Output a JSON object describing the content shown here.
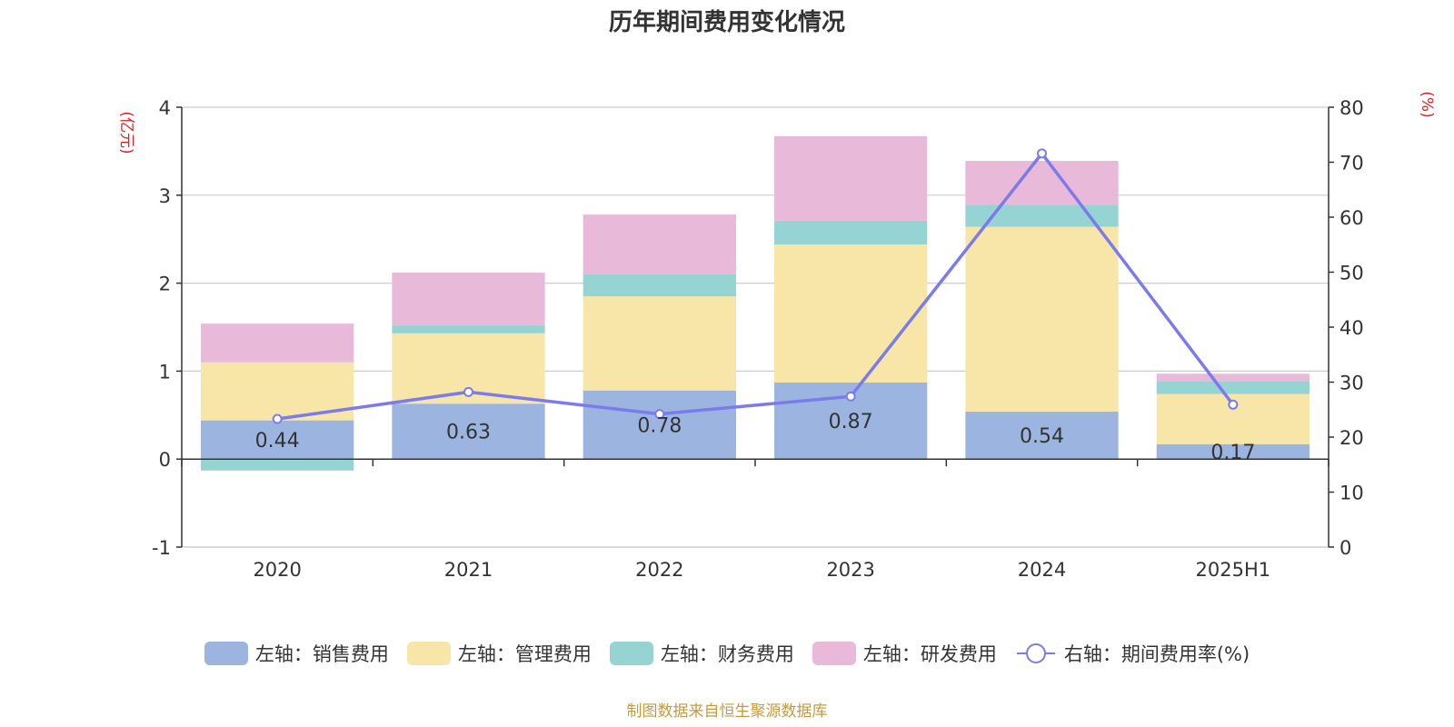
{
  "chart_data": {
    "type": "bar",
    "title": "历年期间费用变化情况",
    "categories": [
      "2020",
      "2021",
      "2022",
      "2023",
      "2024",
      "2025H1"
    ],
    "left_axis": {
      "label": "(亿元)",
      "ticks": [
        "4",
        "3",
        "2",
        "1",
        "0",
        "-1"
      ],
      "range": [
        -1,
        4
      ]
    },
    "right_axis": {
      "label": "(%)",
      "ticks": [
        "80",
        "70",
        "60",
        "50",
        "40",
        "30",
        "20",
        "10",
        "0"
      ],
      "range": [
        0,
        80
      ]
    },
    "series": [
      {
        "name": "左轴：销售费用",
        "axis": "left",
        "stack": true,
        "color": "#9bb5e0",
        "values": [
          0.44,
          0.63,
          0.78,
          0.87,
          0.54,
          0.17
        ],
        "labels": [
          "0.44",
          "0.63",
          "0.78",
          "0.87",
          "0.54",
          "0.17"
        ]
      },
      {
        "name": "左轴：管理费用",
        "axis": "left",
        "stack": true,
        "color": "#f7e6a8",
        "values": [
          0.66,
          0.8,
          1.07,
          1.57,
          2.1,
          0.57
        ]
      },
      {
        "name": "左轴：财务费用",
        "axis": "left",
        "stack": true,
        "color": "#96d3d3",
        "values": [
          -0.13,
          0.09,
          0.25,
          0.27,
          0.25,
          0.14
        ]
      },
      {
        "name": "左轴：研发费用",
        "axis": "left",
        "stack": true,
        "color": "#e8b9d9",
        "values": [
          0.44,
          0.6,
          0.68,
          0.96,
          0.5,
          0.09
        ]
      },
      {
        "name": "右轴：期间费用率(%)",
        "axis": "right",
        "type": "line",
        "color": "#7b7bea",
        "values": [
          23.3,
          28.2,
          24.2,
          27.4,
          71.6,
          25.9
        ]
      }
    ],
    "grid": true,
    "legend_position": "bottom"
  },
  "source_note": "制图数据来自恒生聚源数据库"
}
